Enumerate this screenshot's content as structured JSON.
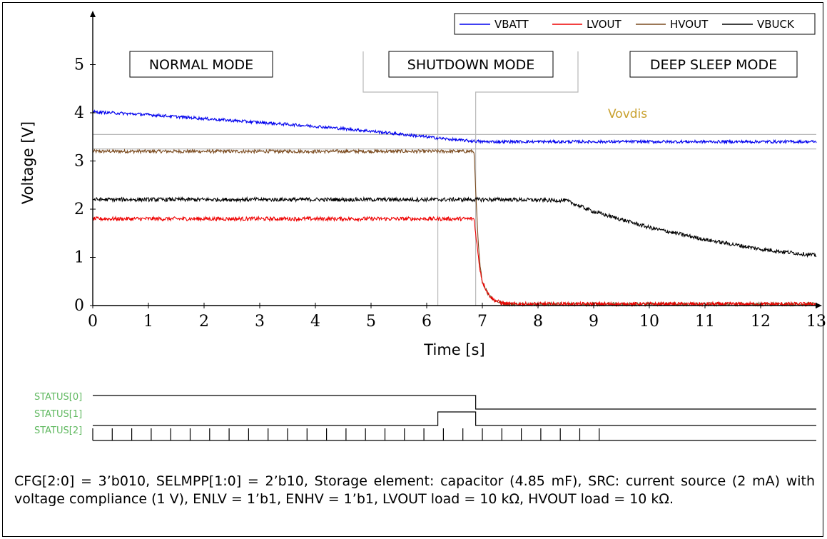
{
  "chart_data": {
    "type": "line",
    "xlabel": "Time [s]",
    "ylabel": "Voltage [V]",
    "xlim": [
      0,
      13
    ],
    "ylim": [
      0,
      6
    ],
    "xticks": [
      "0",
      "1",
      "2",
      "3",
      "4",
      "5",
      "6",
      "7",
      "8",
      "9",
      "10",
      "11",
      "12",
      "13"
    ],
    "yticks": [
      "0",
      "1",
      "2",
      "3",
      "4",
      "5"
    ],
    "legend_position": "top-right",
    "series": [
      {
        "name": "VBATT",
        "color": "#0000ee",
        "x": [
          0,
          1,
          2,
          3,
          4,
          5,
          6,
          6.5,
          7,
          8,
          9,
          10,
          11,
          12,
          13
        ],
        "y": [
          4.02,
          3.96,
          3.88,
          3.8,
          3.72,
          3.62,
          3.5,
          3.44,
          3.4,
          3.4,
          3.4,
          3.4,
          3.4,
          3.4,
          3.4
        ]
      },
      {
        "name": "LVOUT",
        "color": "#ee0000",
        "x": [
          0,
          6.85,
          6.9,
          6.95,
          7.0,
          7.1,
          7.2,
          7.35,
          7.5,
          13
        ],
        "y": [
          1.8,
          1.8,
          1.3,
          0.8,
          0.5,
          0.25,
          0.12,
          0.05,
          0.03,
          0.03
        ]
      },
      {
        "name": "HVOUT",
        "color": "#7a4a1e",
        "x": [
          0,
          6.85,
          6.88,
          6.92,
          6.96,
          7.0,
          7.1,
          7.2,
          7.35,
          7.5,
          13
        ],
        "y": [
          3.2,
          3.2,
          2.4,
          1.4,
          0.8,
          0.5,
          0.25,
          0.12,
          0.05,
          0.03,
          0.03
        ]
      },
      {
        "name": "VBUCK",
        "color": "#000000",
        "x": [
          0,
          7.5,
          8.5,
          9,
          10,
          11,
          12,
          13
        ],
        "y": [
          2.2,
          2.2,
          2.18,
          1.95,
          1.62,
          1.37,
          1.17,
          1.04
        ]
      }
    ],
    "annotations": [
      {
        "text": "NORMAL MODE"
      },
      {
        "text": "SHUTDOWN MODE"
      },
      {
        "text": "DEEP SLEEP MODE"
      },
      {
        "text": "Vovdis"
      }
    ],
    "threshold_lines_y": [
      3.55,
      3.25
    ],
    "markers_x": [
      6.2,
      6.88
    ]
  },
  "status": {
    "labels": [
      "STATUS[0]",
      "STATUS[1]",
      "STATUS[2]"
    ],
    "status0_high_until_s": 6.88,
    "status1_high_from_s": 6.2,
    "status1_high_until_s": 6.88,
    "status2_pulse_period_s": 0.35,
    "status2_pulses_until_s": 9.2
  },
  "caption": "CFG[2:0] = 3’b010, SELMPP[1:0] = 2’b10, Storage element: capacitor (4.85 mF), SRC: current source (2 mA) with voltage compliance (1 V), ENLV = 1’b1, ENHV = 1’b1, LVOUT load = 10 kΩ, HVOUT load = 10 kΩ."
}
